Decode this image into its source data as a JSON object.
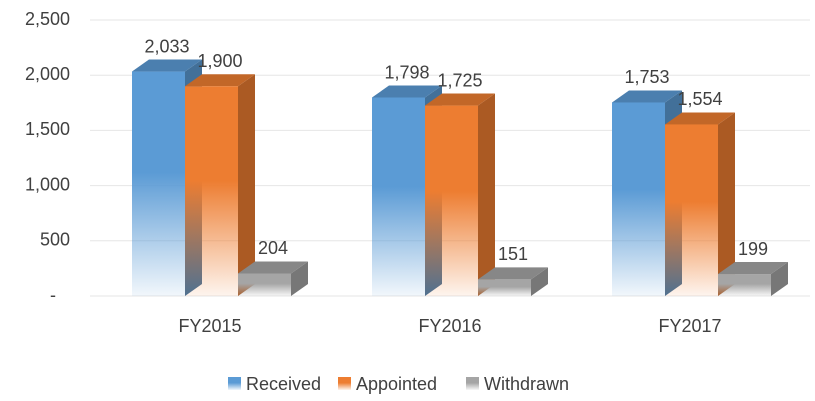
{
  "chart_data": {
    "type": "bar3d",
    "categories": [
      "FY2015",
      "FY2016",
      "FY2017"
    ],
    "series": [
      {
        "name": "Received",
        "color": "#5b9bd5",
        "values": [
          2033,
          1798,
          1753
        ],
        "value_labels": [
          "2,033",
          "1,798",
          "1,753"
        ]
      },
      {
        "name": "Appointed",
        "color": "#ed7d31",
        "values": [
          1900,
          1725,
          1554
        ],
        "value_labels": [
          "1,900",
          "1,725",
          "1,554"
        ]
      },
      {
        "name": "Withdrawn",
        "color": "#a5a5a5",
        "values": [
          204,
          151,
          199
        ],
        "value_labels": [
          "204",
          "151",
          "199"
        ]
      }
    ],
    "ylim": [
      0,
      2500
    ],
    "yticks": [
      {
        "value": 0,
        "label": "-"
      },
      500,
      {
        "value": 1000,
        "label": "1,000"
      },
      {
        "value": 1500,
        "label": "1,500"
      },
      {
        "value": 2000,
        "label": "2,000"
      },
      {
        "value": 2500,
        "label": "2,500"
      }
    ],
    "grid": true,
    "legend": "bottom"
  }
}
